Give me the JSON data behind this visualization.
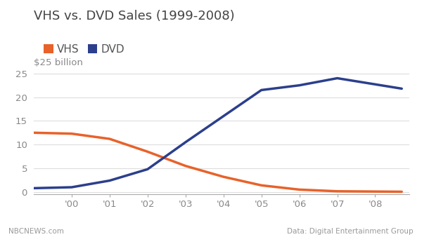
{
  "title": "VHS vs. DVD Sales (1999-2008)",
  "ylabel_text": "$25 billion",
  "footnote_left": "NBCNEWS.com",
  "footnote_right": "Data: Digital Entertainment Group",
  "vhs_color": "#E8622A",
  "dvd_color": "#2B3F8C",
  "background_color": "#FFFFFF",
  "years": [
    1999,
    2000,
    2001,
    2002,
    2003,
    2004,
    2005,
    2006,
    2007,
    2008.7
  ],
  "vhs_values": [
    12.5,
    12.3,
    11.2,
    8.5,
    5.5,
    3.2,
    1.4,
    0.5,
    0.15,
    0.05
  ],
  "dvd_values": [
    0.8,
    1.0,
    2.4,
    4.8,
    10.5,
    16.0,
    21.5,
    22.5,
    24.0,
    21.8
  ],
  "xlim": [
    1999,
    2008.9
  ],
  "ylim": [
    -0.5,
    26.5
  ],
  "xtick_positions": [
    2000,
    2001,
    2002,
    2003,
    2004,
    2005,
    2006,
    2007,
    2008
  ],
  "xtick_labels": [
    "'00",
    "'01",
    "'02",
    "'03",
    "'04",
    "'05",
    "'06",
    "'07",
    "'08"
  ],
  "ytick_positions": [
    0,
    5,
    10,
    15,
    20,
    25
  ],
  "line_width": 2.5,
  "title_fontsize": 13,
  "legend_fontsize": 11,
  "tick_fontsize": 9.5,
  "footnote_fontsize": 7.5,
  "ylabel_fontsize": 9.5
}
